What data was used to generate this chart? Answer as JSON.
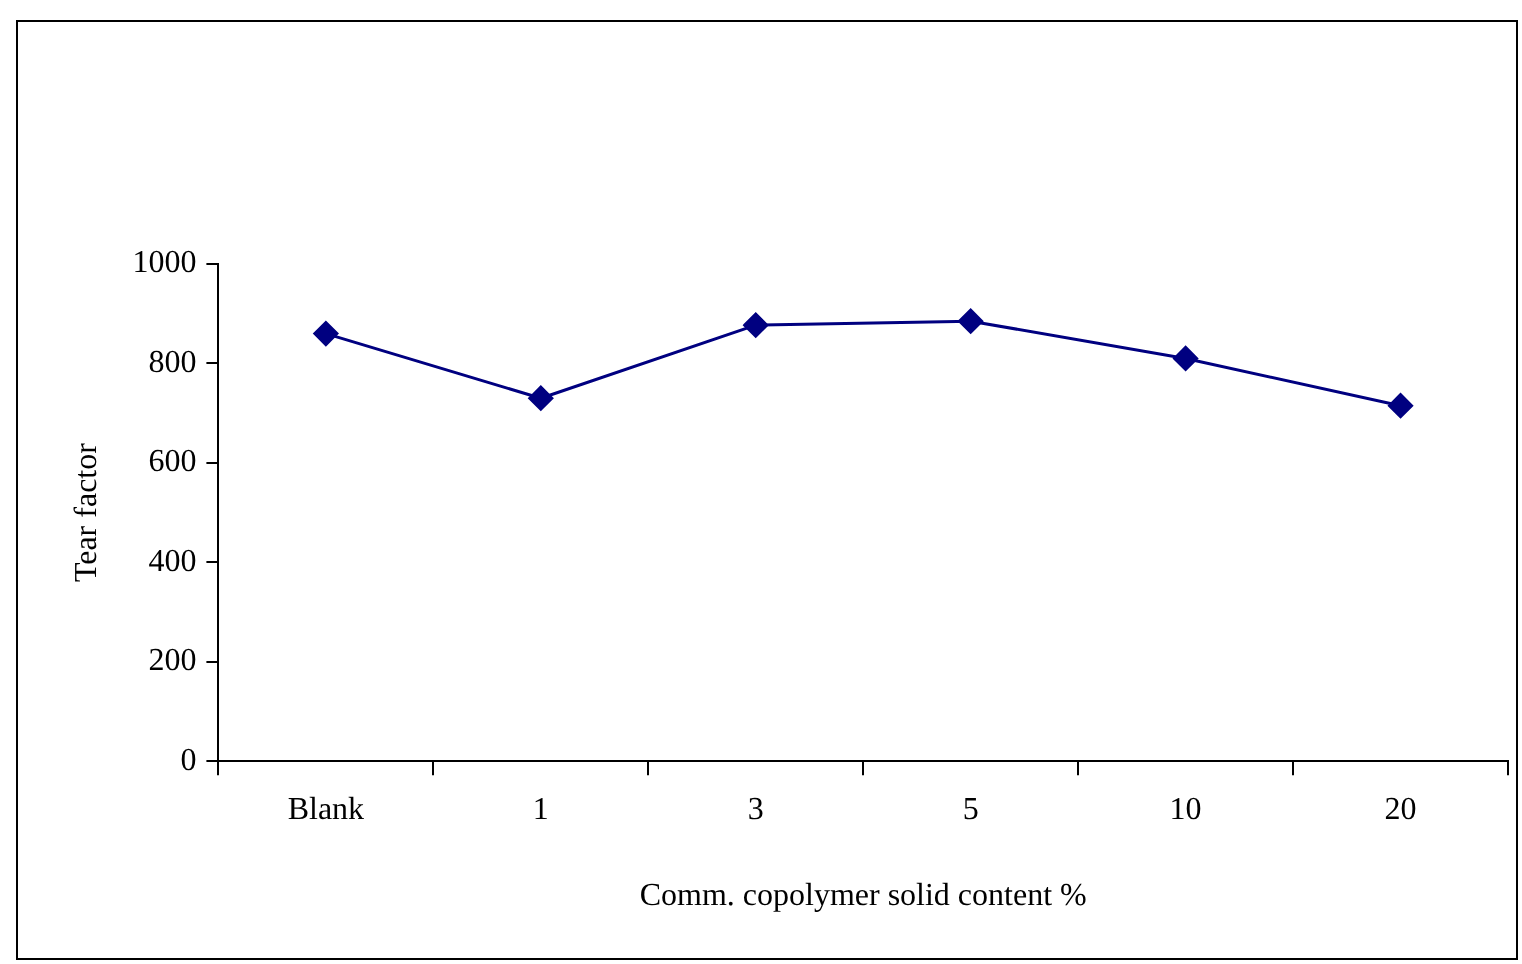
{
  "chart_data": {
    "type": "line",
    "xlabel": "Comm. copolymer solid content %",
    "ylabel": "Tear factor",
    "categories": [
      "Blank",
      "1",
      "3",
      "5",
      "10",
      "20"
    ],
    "series": [
      {
        "color": "#000080",
        "values": [
          860,
          730,
          877,
          885,
          810,
          715
        ]
      }
    ],
    "ylim": [
      0,
      1000
    ],
    "yticks": [
      0,
      200,
      400,
      600,
      800,
      1000
    ],
    "grid": false,
    "legend": false,
    "marker": "diamond",
    "line_style": "solid"
  }
}
